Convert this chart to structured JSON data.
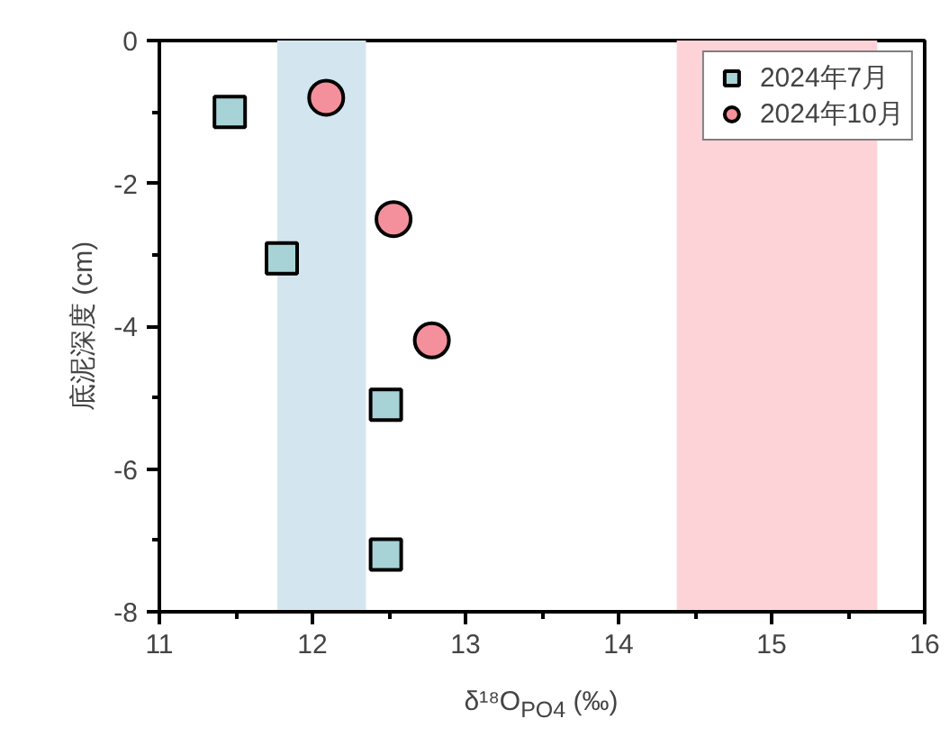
{
  "chart_data": {
    "type": "scatter",
    "xlabel": "δ¹⁸O$_{PO4}$ (‰)",
    "ylabel": "底泥深度 (cm)",
    "xlim": [
      11,
      16
    ],
    "ylim": [
      -8,
      0
    ],
    "xticks": [
      11,
      12,
      13,
      14,
      15,
      16
    ],
    "yticks": [
      -8,
      -6,
      -4,
      -2,
      0
    ],
    "grid": false,
    "legend": "top right",
    "bands": [
      {
        "axis": "x",
        "from": 11.77,
        "to": 12.35,
        "color": "#d3e6f0"
      },
      {
        "axis": "x",
        "from": 14.38,
        "to": 15.69,
        "color": "#fdd3d8"
      }
    ],
    "series": [
      {
        "name": "2024年7月",
        "color": "#a8d3d6",
        "marker": "square",
        "x": [
          11.46,
          11.8,
          12.48,
          12.48
        ],
        "values": [
          -1.0,
          -3.05,
          -5.1,
          -7.2
        ]
      },
      {
        "name": "2024年10月",
        "color": "#f4909c",
        "marker": "circle",
        "x": [
          12.09,
          12.53,
          12.78
        ],
        "values": [
          -0.8,
          -2.5,
          -4.2
        ]
      }
    ]
  }
}
